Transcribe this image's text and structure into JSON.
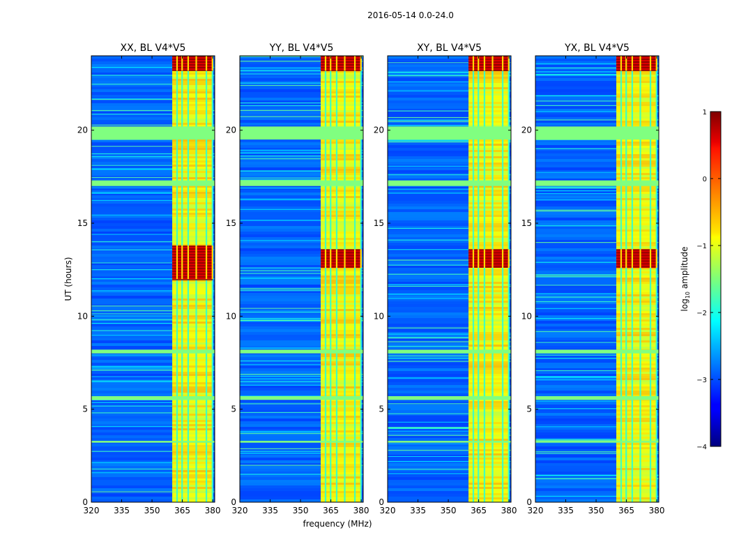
{
  "figure": {
    "suptitle": "2016-05-14 0.0-24.0",
    "xlabel": "frequency (MHz)",
    "ylabel": "UT (hours)",
    "colorbar_label": "log10 amplitude",
    "colorbar_label_base": "log",
    "colorbar_label_sub": "10",
    "colorbar_label_rest": " amplitude",
    "colorbar_ticks": [
      -4,
      -3,
      -2,
      -1,
      0,
      1
    ],
    "colorbar_tick_labels": [
      "−4",
      "−3",
      "−2",
      "−1",
      "0",
      "1"
    ],
    "colormap": "jet"
  },
  "chart_data": [
    {
      "type": "heatmap",
      "title": "XX, BL V4*V5",
      "xlabel": "",
      "ylabel": "UT (hours)",
      "xlim": [
        320,
        381
      ],
      "ylim": [
        0,
        24
      ],
      "xticks": [
        320,
        335,
        350,
        365,
        380
      ],
      "yticks": [
        0,
        5,
        10,
        15,
        20
      ],
      "clim": [
        -4,
        1
      ],
      "background_level": -2.9,
      "rfi_band_mhz": [
        360,
        380
      ],
      "rfi_band_level": -1.0,
      "strong_rfi_hours": [
        [
          12.0,
          13.8
        ],
        [
          23.2,
          24.0
        ]
      ],
      "flagged_hours": [
        [
          19.5,
          20.2
        ],
        [
          17.0,
          17.3
        ],
        [
          8.0,
          8.2
        ],
        [
          5.5,
          5.7
        ],
        [
          3.2,
          3.3
        ]
      ]
    },
    {
      "type": "heatmap",
      "title": "YY, BL V4*V5",
      "xlabel": "frequency (MHz)",
      "ylabel": "",
      "xlim": [
        320,
        381
      ],
      "ylim": [
        0,
        24
      ],
      "xticks": [
        320,
        335,
        350,
        365,
        380
      ],
      "yticks": [
        0,
        5,
        10,
        15,
        20
      ],
      "clim": [
        -4,
        1
      ],
      "background_level": -2.9,
      "rfi_band_mhz": [
        360,
        380
      ],
      "rfi_band_level": -1.0,
      "strong_rfi_hours": [
        [
          12.6,
          13.6
        ],
        [
          23.2,
          24.0
        ]
      ],
      "flagged_hours": [
        [
          19.5,
          20.2
        ],
        [
          17.0,
          17.3
        ],
        [
          8.0,
          8.2
        ],
        [
          5.5,
          5.7
        ],
        [
          3.2,
          3.3
        ]
      ]
    },
    {
      "type": "heatmap",
      "title": "XY, BL V4*V5",
      "xlabel": "",
      "ylabel": "",
      "xlim": [
        320,
        381
      ],
      "ylim": [
        0,
        24
      ],
      "xticks": [
        320,
        335,
        350,
        365,
        380
      ],
      "yticks": [
        0,
        5,
        10,
        15,
        20
      ],
      "clim": [
        -4,
        1
      ],
      "background_level": -2.9,
      "rfi_band_mhz": [
        360,
        380
      ],
      "rfi_band_level": -1.0,
      "strong_rfi_hours": [
        [
          12.6,
          13.6
        ],
        [
          23.2,
          24.0
        ]
      ],
      "flagged_hours": [
        [
          19.5,
          20.2
        ],
        [
          17.0,
          17.3
        ],
        [
          8.0,
          8.2
        ],
        [
          5.5,
          5.7
        ],
        [
          3.2,
          3.3
        ]
      ]
    },
    {
      "type": "heatmap",
      "title": "YX, BL V4*V5",
      "xlabel": "",
      "ylabel": "",
      "xlim": [
        320,
        381
      ],
      "ylim": [
        0,
        24
      ],
      "xticks": [
        320,
        335,
        350,
        365,
        380
      ],
      "yticks": [
        0,
        5,
        10,
        15,
        20
      ],
      "clim": [
        -4,
        1
      ],
      "background_level": -2.9,
      "rfi_band_mhz": [
        360,
        380
      ],
      "rfi_band_level": -1.0,
      "strong_rfi_hours": [
        [
          12.6,
          13.6
        ],
        [
          23.2,
          24.0
        ]
      ],
      "flagged_hours": [
        [
          19.5,
          20.2
        ],
        [
          17.0,
          17.3
        ],
        [
          8.0,
          8.2
        ],
        [
          5.5,
          5.7
        ],
        [
          3.2,
          3.3
        ]
      ]
    }
  ]
}
